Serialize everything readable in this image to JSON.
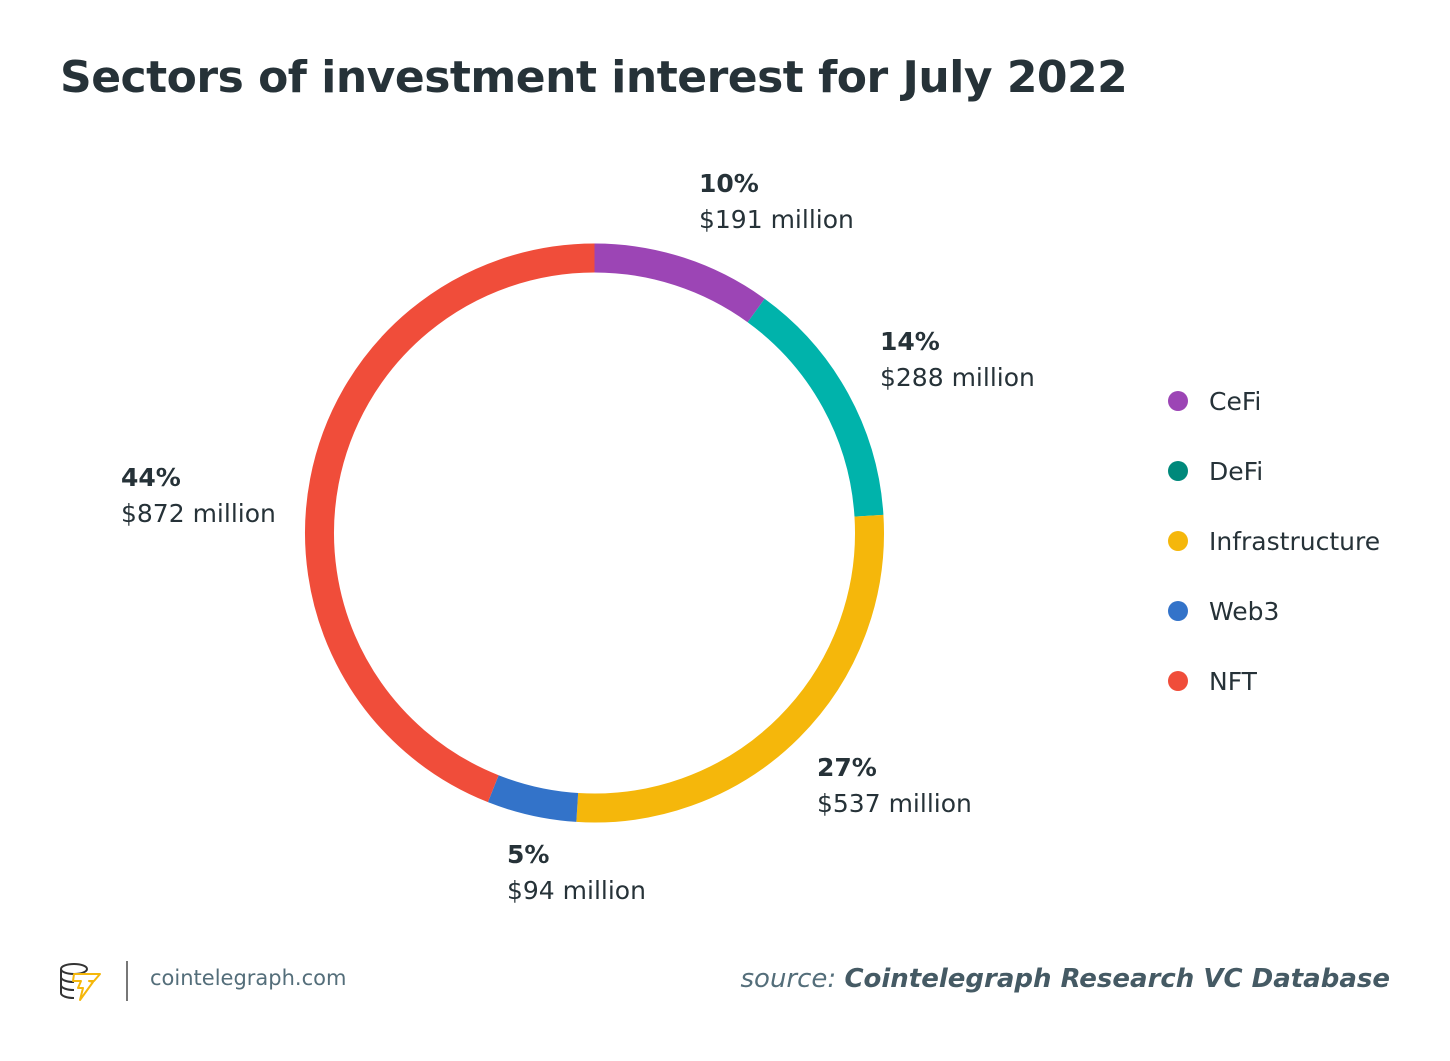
{
  "title": "Sectors of investment interest for July 2022",
  "chart_data": {
    "type": "pie",
    "subtype": "donut",
    "title": "Sectors of investment interest for July 2022",
    "unit": "USD million",
    "legend_position": "right",
    "slices": [
      {
        "name": "CeFi",
        "percent": 10,
        "value": 191,
        "pct_label": "10%",
        "amount_label": "$191 million",
        "color": "#9c45b5",
        "legend_color": "#9c45b5"
      },
      {
        "name": "DeFi",
        "percent": 14,
        "value": 288,
        "pct_label": "14%",
        "amount_label": "$288 million",
        "color": "#00b3ab",
        "legend_color": "#00897b"
      },
      {
        "name": "Infrastructure",
        "percent": 27,
        "value": 537,
        "pct_label": "27%",
        "amount_label": "$537 million",
        "color": "#f5b70b",
        "legend_color": "#f5b70b"
      },
      {
        "name": "Web3",
        "percent": 5,
        "value": 94,
        "pct_label": "5%",
        "amount_label": "$94 million",
        "color": "#3373c9",
        "legend_color": "#3373c9"
      },
      {
        "name": "NFT",
        "percent": 44,
        "value": 872,
        "pct_label": "44%",
        "amount_label": "$872 million",
        "color": "#f04d3a",
        "legend_color": "#f04d3a"
      }
    ]
  },
  "footer": {
    "site": "cointelegraph.com",
    "source_prefix": "source:",
    "source_name": "Cointelegraph Research VC Database"
  }
}
